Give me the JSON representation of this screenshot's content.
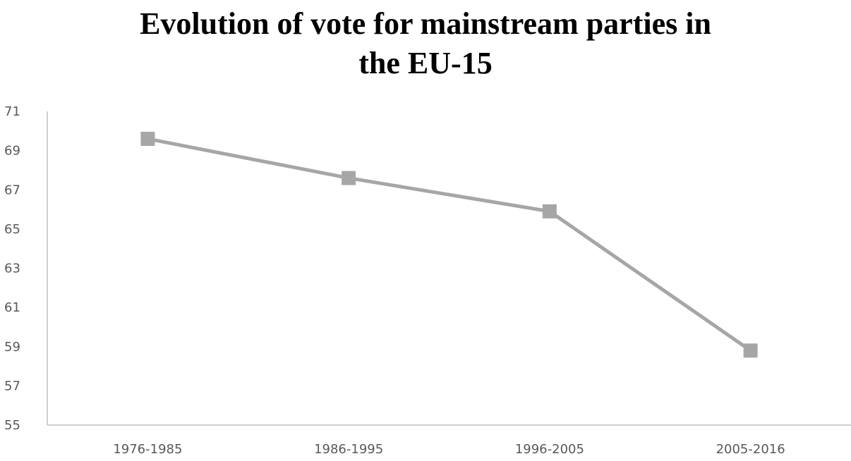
{
  "chart_data": {
    "type": "line",
    "title": "Evolution of vote for mainstream parties in the EU-15",
    "title_lines": [
      "Evolution of vote for mainstream parties in",
      "the EU-15"
    ],
    "categories": [
      "1976-1985",
      "1986-1995",
      "1996-2005",
      "2005-2016"
    ],
    "series": [
      {
        "values": [
          69.6,
          67.6,
          65.9,
          58.8
        ],
        "color": "#a6a6a6",
        "marker": "square"
      }
    ],
    "xlabel": "",
    "ylabel": "",
    "ylim": [
      55,
      71
    ],
    "yticks": [
      55,
      57,
      59,
      61,
      63,
      65,
      67,
      69,
      71
    ],
    "grid": false,
    "legend": "none",
    "axis_color": "#bfbfbf",
    "tick_label_color": "#595959"
  }
}
